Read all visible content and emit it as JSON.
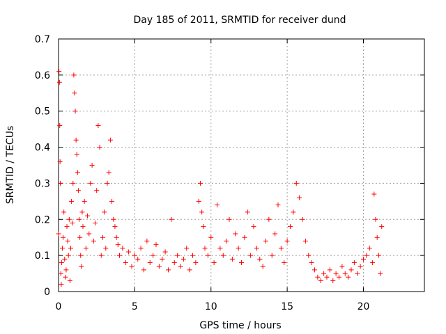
{
  "chart_data": {
    "type": "scatter",
    "title": "Day 185 of 2011, SRMTID for receiver dund",
    "xlabel": "GPS time / hours",
    "ylabel": "SRMTID / TECUs",
    "xlim": [
      0,
      24
    ],
    "ylim": [
      0,
      0.7
    ],
    "x_ticks": [
      0,
      5,
      10,
      15,
      20
    ],
    "x_tick_labels": [
      "0",
      "5",
      "10",
      "15",
      "20"
    ],
    "y_ticks": [
      0,
      0.1,
      0.2,
      0.3,
      0.4,
      0.5,
      0.6,
      0.7
    ],
    "y_tick_labels": [
      "0",
      "0.1",
      "0.2",
      "0.3",
      "0.4",
      "0.5",
      "0.6",
      "0.7"
    ],
    "grid": true,
    "marker": "plus",
    "color": "#ff0000",
    "series": [
      {
        "name": "SRMTID",
        "x": [
          0.0,
          0.03,
          0.06,
          0.08,
          0.1,
          0.12,
          0.15,
          0.18,
          0.2,
          0.25,
          0.3,
          0.35,
          0.4,
          0.45,
          0.5,
          0.55,
          0.6,
          0.65,
          0.7,
          0.75,
          0.8,
          0.85,
          0.9,
          0.95,
          1.0,
          1.05,
          1.1,
          1.15,
          1.2,
          1.25,
          1.3,
          1.35,
          1.4,
          1.45,
          1.5,
          1.55,
          1.6,
          1.7,
          1.8,
          1.9,
          2.0,
          2.1,
          2.2,
          2.3,
          2.4,
          2.5,
          2.6,
          2.7,
          2.8,
          2.9,
          3.0,
          3.1,
          3.2,
          3.3,
          3.4,
          3.5,
          3.6,
          3.7,
          3.8,
          3.9,
          4.0,
          4.2,
          4.4,
          4.6,
          4.8,
          5.0,
          5.2,
          5.4,
          5.6,
          5.8,
          6.0,
          6.2,
          6.4,
          6.6,
          6.8,
          7.0,
          7.2,
          7.4,
          7.6,
          7.8,
          8.0,
          8.2,
          8.4,
          8.6,
          8.8,
          9.0,
          9.2,
          9.3,
          9.4,
          9.5,
          9.6,
          9.8,
          10.0,
          10.2,
          10.4,
          10.6,
          10.8,
          11.0,
          11.2,
          11.4,
          11.6,
          11.8,
          12.0,
          12.2,
          12.4,
          12.6,
          12.8,
          13.0,
          13.2,
          13.4,
          13.6,
          13.8,
          14.0,
          14.2,
          14.4,
          14.6,
          14.8,
          15.0,
          15.2,
          15.4,
          15.6,
          15.8,
          16.0,
          16.2,
          16.4,
          16.6,
          16.8,
          17.0,
          17.2,
          17.4,
          17.6,
          17.8,
          18.0,
          18.2,
          18.4,
          18.6,
          18.8,
          19.0,
          19.2,
          19.4,
          19.6,
          19.8,
          20.0,
          20.2,
          20.4,
          20.6,
          20.7,
          20.8,
          20.9,
          21.0,
          21.1,
          21.2
        ],
        "y": [
          0.16,
          0.61,
          0.58,
          0.46,
          0.36,
          0.3,
          0.05,
          0.02,
          0.08,
          0.12,
          0.15,
          0.22,
          0.09,
          0.04,
          0.06,
          0.18,
          0.14,
          0.1,
          0.2,
          0.03,
          0.12,
          0.25,
          0.19,
          0.3,
          0.6,
          0.55,
          0.5,
          0.42,
          0.38,
          0.33,
          0.28,
          0.2,
          0.15,
          0.1,
          0.07,
          0.22,
          0.18,
          0.25,
          0.12,
          0.21,
          0.16,
          0.3,
          0.35,
          0.14,
          0.19,
          0.28,
          0.46,
          0.4,
          0.1,
          0.15,
          0.22,
          0.12,
          0.3,
          0.33,
          0.42,
          0.25,
          0.2,
          0.18,
          0.15,
          0.13,
          0.1,
          0.12,
          0.08,
          0.11,
          0.07,
          0.1,
          0.09,
          0.12,
          0.06,
          0.14,
          0.08,
          0.1,
          0.13,
          0.07,
          0.09,
          0.11,
          0.06,
          0.2,
          0.08,
          0.1,
          0.07,
          0.09,
          0.12,
          0.06,
          0.1,
          0.08,
          0.25,
          0.3,
          0.22,
          0.18,
          0.12,
          0.1,
          0.15,
          0.08,
          0.24,
          0.12,
          0.1,
          0.14,
          0.2,
          0.09,
          0.16,
          0.12,
          0.08,
          0.15,
          0.22,
          0.1,
          0.18,
          0.12,
          0.09,
          0.07,
          0.14,
          0.2,
          0.1,
          0.16,
          0.24,
          0.12,
          0.08,
          0.14,
          0.18,
          0.22,
          0.3,
          0.26,
          0.2,
          0.14,
          0.1,
          0.08,
          0.06,
          0.04,
          0.03,
          0.05,
          0.04,
          0.06,
          0.03,
          0.05,
          0.04,
          0.07,
          0.05,
          0.04,
          0.06,
          0.08,
          0.05,
          0.07,
          0.09,
          0.1,
          0.12,
          0.08,
          0.27,
          0.2,
          0.15,
          0.1,
          0.05,
          0.18
        ]
      }
    ]
  }
}
